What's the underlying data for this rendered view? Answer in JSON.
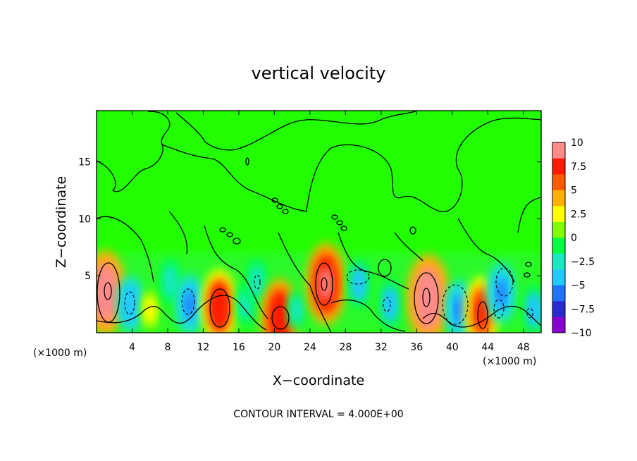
{
  "chart_data": {
    "type": "heatmap",
    "title": "vertical velocity",
    "xlabel": "X−coordinate",
    "ylabel": "Z−coordinate",
    "x_unit_left": "(×1000 m)",
    "x_unit_right": "(×1000 m)",
    "xlim": [
      0,
      50
    ],
    "ylim": [
      0,
      19.5
    ],
    "xticks": [
      "4",
      "8",
      "12",
      "16",
      "20",
      "24",
      "28",
      "32",
      "36",
      "40",
      "44",
      "48"
    ],
    "yticks": [
      "5",
      "10",
      "15"
    ],
    "colorbar": {
      "ticks": [
        "10",
        "7.5",
        "5",
        "2.5",
        "0",
        "−2.5",
        "−5",
        "−7.5",
        "−10"
      ],
      "range": [
        -10,
        10
      ],
      "colors": [
        "#8800cc",
        "#2a2acc",
        "#1e74ff",
        "#22c8ff",
        "#19e8c0",
        "#00ff40",
        "#7fff00",
        "#ffff00",
        "#ffb000",
        "#ff5a00",
        "#ff1a00",
        "#ff8a8a"
      ]
    },
    "cells": [
      {
        "x": 1,
        "z": 3.5,
        "w": 8.5
      },
      {
        "x": 3.8,
        "z": 2.5,
        "w": -4.5
      },
      {
        "x": 6,
        "z": 2,
        "w": 2
      },
      {
        "x": 8.3,
        "z": 4.5,
        "w": -3
      },
      {
        "x": 10.5,
        "z": 2.5,
        "w": -5
      },
      {
        "x": 13.8,
        "z": 2.3,
        "w": 7
      },
      {
        "x": 16.8,
        "z": 2.5,
        "w": -2.5
      },
      {
        "x": 18,
        "z": 4.5,
        "w": -3
      },
      {
        "x": 20.6,
        "z": 1.3,
        "w": 7.5
      },
      {
        "x": 22.5,
        "z": 2,
        "w": -2
      },
      {
        "x": 25.8,
        "z": 4.3,
        "w": 8
      },
      {
        "x": 29.5,
        "z": 4.3,
        "w": -3.5
      },
      {
        "x": 33,
        "z": 2.5,
        "w": -3.5
      },
      {
        "x": 37.3,
        "z": 3,
        "w": 9
      },
      {
        "x": 40.8,
        "z": 2,
        "w": -5
      },
      {
        "x": 43.3,
        "z": 1.8,
        "w": 6.5
      },
      {
        "x": 45.5,
        "z": 3.5,
        "w": -5
      },
      {
        "x": 49.2,
        "z": 2,
        "w": -3.5
      }
    ],
    "contour_interval_label": "CONTOUR INTERVAL = 4.000E+00",
    "grid": false,
    "legend": "right colorbar"
  }
}
